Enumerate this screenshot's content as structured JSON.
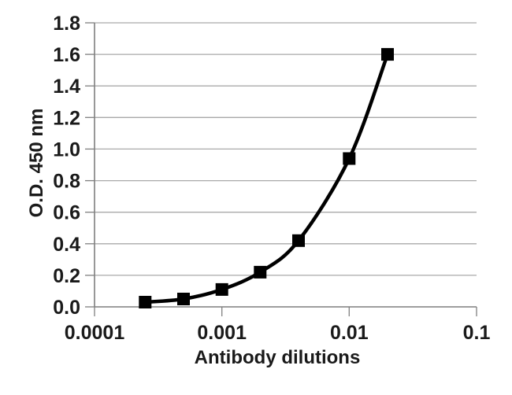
{
  "chart_data": {
    "type": "line",
    "title": "",
    "xlabel": "Antibody dilutions",
    "ylabel": "O.D. 450 nm",
    "x_scale": "log",
    "y_scale": "linear",
    "x": [
      0.00025,
      0.0005,
      0.001,
      0.002,
      0.004,
      0.01,
      0.02
    ],
    "y": [
      0.03,
      0.05,
      0.11,
      0.22,
      0.42,
      0.94,
      1.6
    ],
    "xlim": [
      0.0001,
      0.1
    ],
    "ylim": [
      0,
      1.8
    ],
    "x_ticks": [
      0.0001,
      0.001,
      0.01,
      0.1
    ],
    "x_tick_labels": [
      "0.0001",
      "0.001",
      "0.01",
      "0.1"
    ],
    "y_ticks": [
      0.0,
      0.2,
      0.4,
      0.6,
      0.8,
      1.0,
      1.2,
      1.4,
      1.6,
      1.8
    ],
    "y_tick_labels": [
      "0.0",
      "0.2",
      "0.4",
      "0.6",
      "0.8",
      "1.0",
      "1.2",
      "1.4",
      "1.6",
      "1.8"
    ],
    "grid": "horizontal",
    "legend": "none",
    "line_style": "smooth-solid",
    "marker": "filled-square",
    "colors": {
      "line": "#000000",
      "marker": "#000000",
      "grid": "#a9a9a9",
      "axis": "#7f7f7f",
      "text": "#1a1a1a",
      "background": "#ffffff"
    }
  }
}
